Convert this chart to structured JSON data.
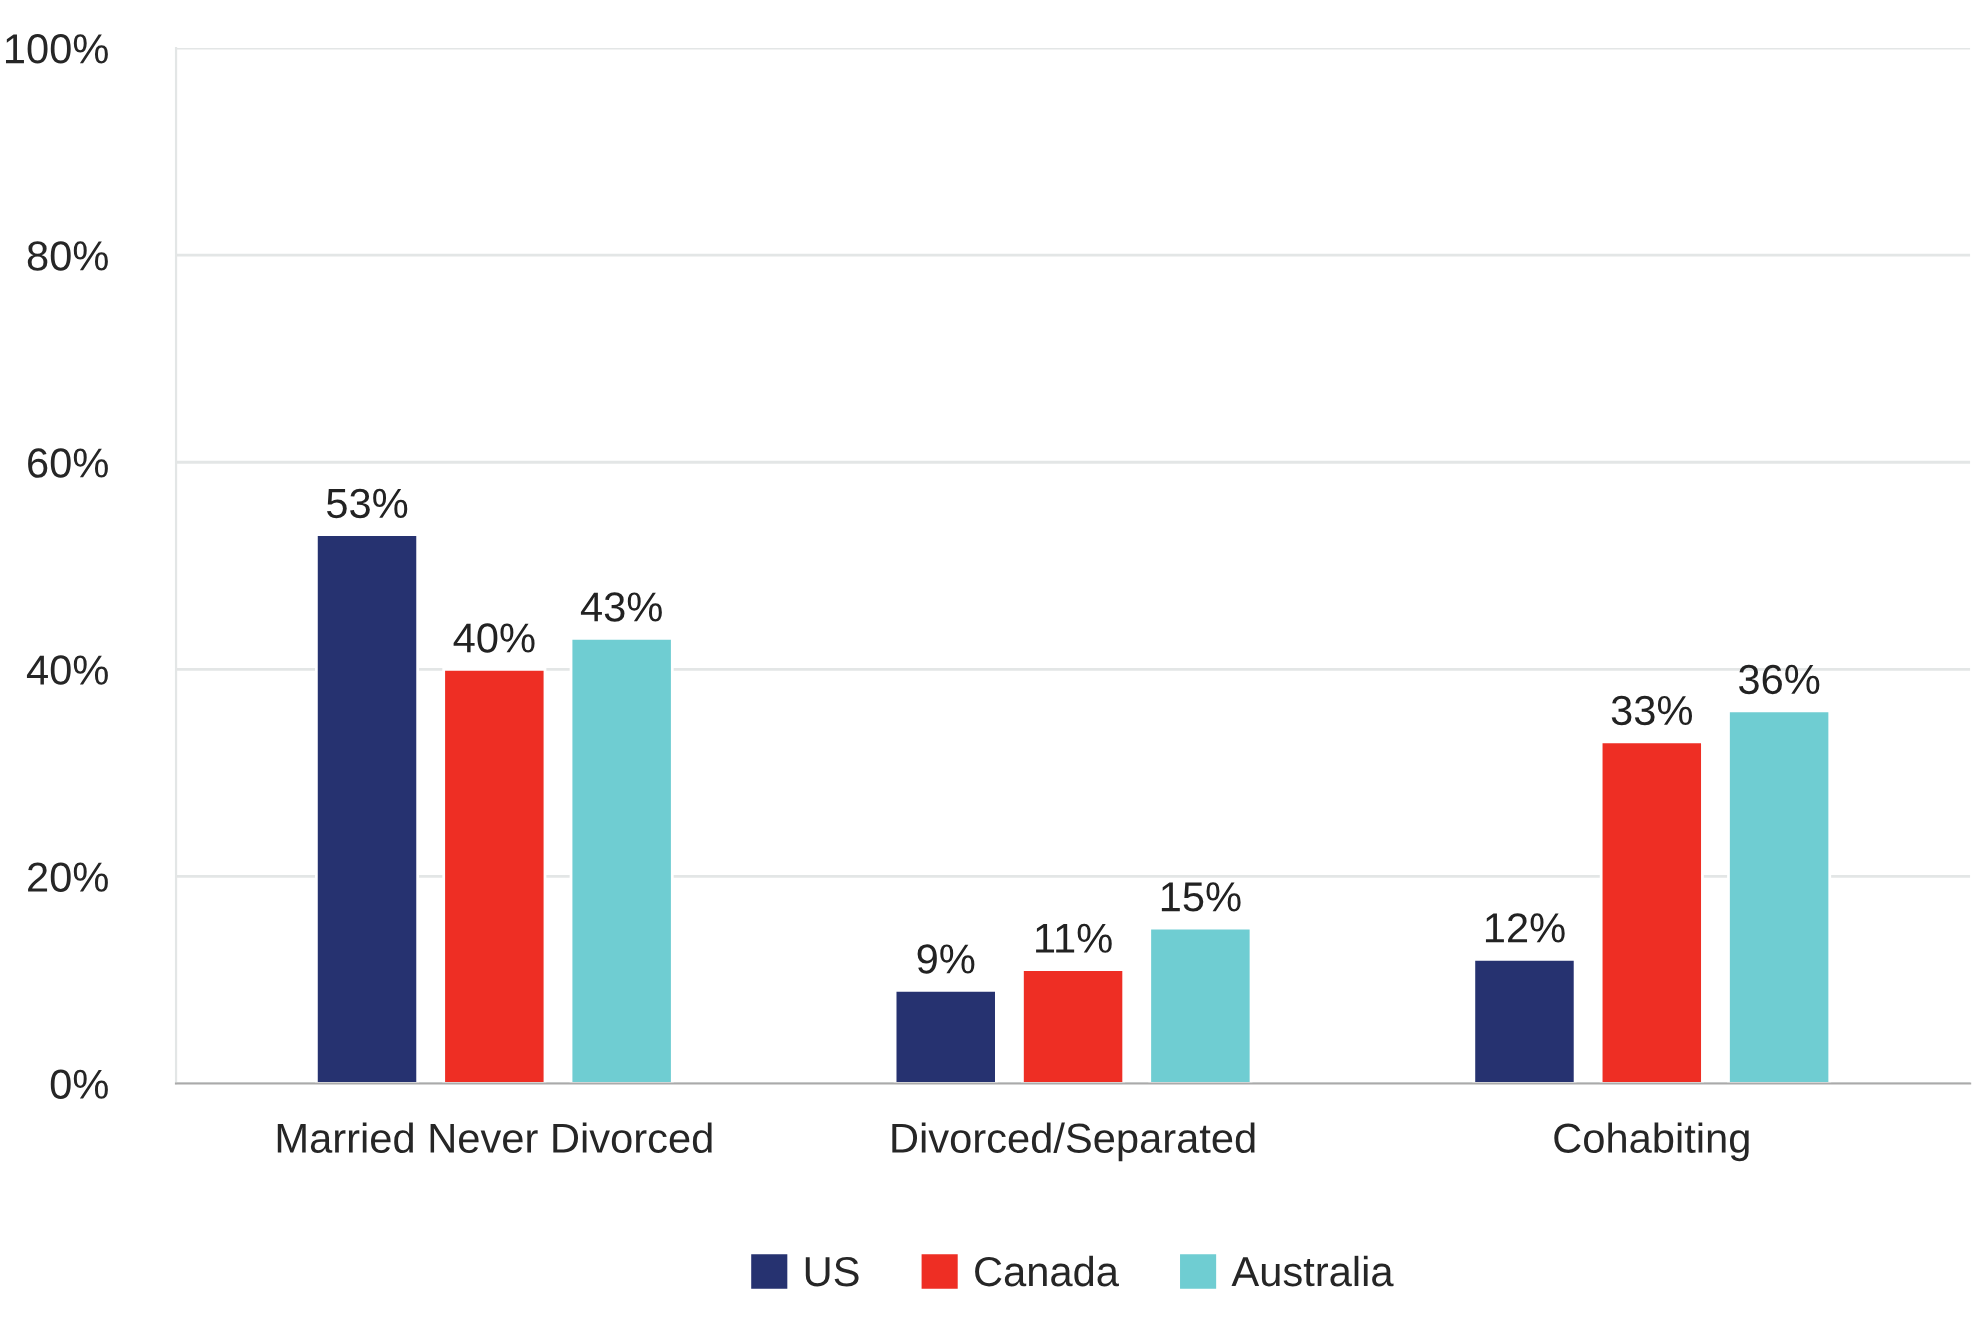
{
  "chart_data": {
    "type": "bar",
    "categories": [
      "Married Never Divorced",
      "Divorced/Separated",
      "Cohabiting"
    ],
    "series": [
      {
        "name": "US",
        "color": "#263270",
        "values": [
          53,
          9,
          12
        ],
        "value_labels": [
          "53%",
          "9%",
          "12%"
        ]
      },
      {
        "name": "Canada",
        "color": "#ee2e24",
        "values": [
          40,
          11,
          33
        ],
        "value_labels": [
          "40%",
          "11%",
          "33%"
        ]
      },
      {
        "name": "Australia",
        "color": "#6fcdd2",
        "values": [
          43,
          15,
          36
        ],
        "value_labels": [
          "43%",
          "15%",
          "36%"
        ]
      }
    ],
    "ylim": [
      0,
      100
    ],
    "yticks": [
      {
        "value": 0,
        "label": "0%"
      },
      {
        "value": 20,
        "label": "20%"
      },
      {
        "value": 40,
        "label": "40%"
      },
      {
        "value": 60,
        "label": "60%"
      },
      {
        "value": 80,
        "label": "80%"
      },
      {
        "value": 100,
        "label": "100%"
      }
    ],
    "grid": "y",
    "legend": "bottom"
  }
}
